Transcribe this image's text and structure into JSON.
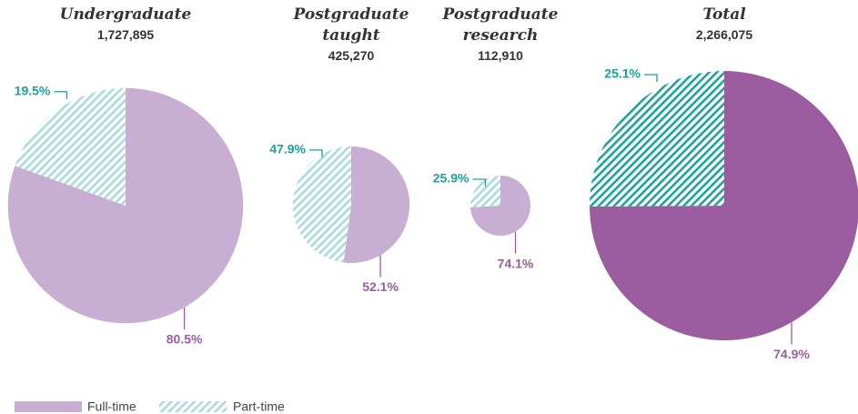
{
  "chart_data": [
    {
      "type": "pie",
      "title": "Undergraduate",
      "total": {
        "value": 1727895,
        "label": "1,727,895"
      },
      "categories": [
        "Full-time",
        "Part-time"
      ],
      "values": [
        80.5,
        19.5
      ],
      "value_labels": [
        "80.5%",
        "19.5%"
      ],
      "colors": [
        "#c9aed4",
        "#a8dcd9"
      ]
    },
    {
      "type": "pie",
      "title": "Postgraduate taught",
      "total": {
        "value": 425270,
        "label": "425,270"
      },
      "categories": [
        "Full-time",
        "Part-time"
      ],
      "values": [
        52.1,
        47.9
      ],
      "value_labels": [
        "52.1%",
        "47.9%"
      ],
      "colors": [
        "#c9aed4",
        "#a8dcd9"
      ]
    },
    {
      "type": "pie",
      "title": "Postgraduate research",
      "total": {
        "value": 112910,
        "label": "112,910"
      },
      "categories": [
        "Full-time",
        "Part-time"
      ],
      "values": [
        74.1,
        25.9
      ],
      "value_labels": [
        "74.1%",
        "25.9%"
      ],
      "colors": [
        "#c9aed4",
        "#a8dcd9"
      ]
    },
    {
      "type": "pie",
      "title": "Total",
      "total": {
        "value": 2266075,
        "label": "2,266,075"
      },
      "categories": [
        "Full-time",
        "Part-time"
      ],
      "values": [
        74.9,
        25.1
      ],
      "value_labels": [
        "74.9%",
        "25.1%"
      ],
      "colors": [
        "#9b5ca0",
        "#1aa39c"
      ]
    }
  ]
}
